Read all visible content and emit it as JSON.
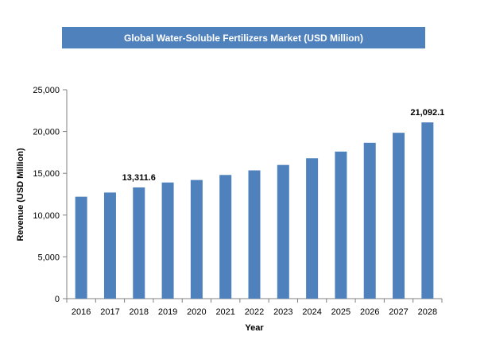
{
  "chart_data": {
    "type": "bar",
    "title": "Global Water-Soluble Fertilizers Market (USD Million)",
    "xlabel": "Year",
    "ylabel": "Revenue (USD Million)",
    "categories": [
      "2016",
      "2017",
      "2018",
      "2019",
      "2020",
      "2021",
      "2022",
      "2023",
      "2024",
      "2025",
      "2026",
      "2027",
      "2028"
    ],
    "values": [
      12200,
      12700,
      13311.6,
      13900,
      14200,
      14800,
      15350,
      16000,
      16800,
      17600,
      18650,
      19850,
      21092.1
    ],
    "ylim": [
      0,
      25000
    ],
    "yticks": [
      0,
      5000,
      10000,
      15000,
      20000,
      25000
    ],
    "ytick_labels": [
      "0",
      "5,000",
      "10,000",
      "15,000",
      "20,000",
      "25,000"
    ],
    "data_labels": [
      {
        "category": "2018",
        "text": "13,311.6"
      },
      {
        "category": "2028",
        "text": "21,092.1"
      }
    ],
    "grid": false,
    "legend": "none",
    "bar_color": "#4f81bd",
    "title_banner_color": "#4f81bd"
  }
}
